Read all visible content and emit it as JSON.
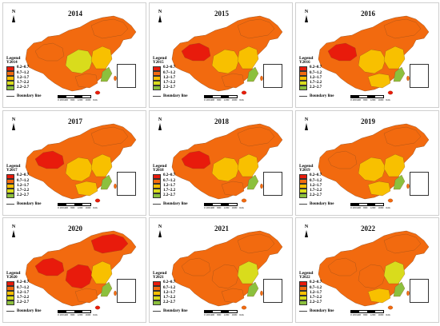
{
  "colors": {
    "c1": "#e81b0c",
    "c2": "#f26a0f",
    "c3": "#f8c000",
    "c4": "#d9dc1c",
    "c5": "#8cc03d",
    "base": "#f26a0f"
  },
  "legend": {
    "title": "Legend",
    "items": [
      "0.2~0.7",
      "0.7~1.2",
      "1.2~1.7",
      "1.7~2.2",
      "2.2~2.7"
    ],
    "boundary_label": "Boundary line"
  },
  "scale_labels": [
    "0 200400",
    "800",
    "1200",
    "1600",
    "Km"
  ],
  "panels": [
    {
      "year": "2014",
      "series_label": "Y2014",
      "regions": {
        "west": "c2",
        "north": "c2",
        "center": "c4",
        "east": "c3",
        "south": "c2",
        "coast": "c5",
        "hainan": "c1",
        "taiwan": "c2"
      }
    },
    {
      "year": "2015",
      "series_label": "Y2015",
      "regions": {
        "west": "c1",
        "north": "c2",
        "center": "c3",
        "east": "c3",
        "south": "c2",
        "coast": "c5",
        "hainan": "c1",
        "taiwan": "c2"
      }
    },
    {
      "year": "2016",
      "series_label": "Y2016",
      "regions": {
        "west": "c1",
        "north": "c2",
        "center": "c3",
        "east": "c3",
        "south": "c3",
        "coast": "c5",
        "hainan": "c1",
        "taiwan": "c2"
      }
    },
    {
      "year": "2017",
      "series_label": "Y2017",
      "regions": {
        "west": "c1",
        "north": "c2",
        "center": "c3",
        "east": "c3",
        "south": "c3",
        "coast": "c5",
        "hainan": "c1",
        "taiwan": "c2"
      }
    },
    {
      "year": "2018",
      "series_label": "Y2018",
      "regions": {
        "west": "c1",
        "north": "c2",
        "center": "c3",
        "east": "c3",
        "south": "c2",
        "coast": "c5",
        "hainan": "c2",
        "taiwan": "c2"
      }
    },
    {
      "year": "2019",
      "series_label": "Y2019",
      "regions": {
        "west": "c2",
        "north": "c2",
        "center": "c3",
        "east": "c3",
        "south": "c3",
        "coast": "c5",
        "hainan": "c2",
        "taiwan": "c2"
      }
    },
    {
      "year": "2020",
      "series_label": "Y2020",
      "regions": {
        "west": "c1",
        "north": "c1",
        "center": "c1",
        "east": "c3",
        "south": "c2",
        "coast": "c5",
        "hainan": "c1",
        "taiwan": "c2"
      }
    },
    {
      "year": "2021",
      "series_label": "Y2021",
      "regions": {
        "west": "c2",
        "north": "c2",
        "center": "c2",
        "east": "c4",
        "south": "c2",
        "coast": "c5",
        "hainan": "c2",
        "taiwan": "c2"
      }
    },
    {
      "year": "2022",
      "series_label": "Y2022",
      "regions": {
        "west": "c2",
        "north": "c2",
        "center": "c2",
        "east": "c4",
        "south": "c3",
        "coast": "c5",
        "hainan": "c2",
        "taiwan": "c2"
      }
    }
  ],
  "north_label": "N"
}
